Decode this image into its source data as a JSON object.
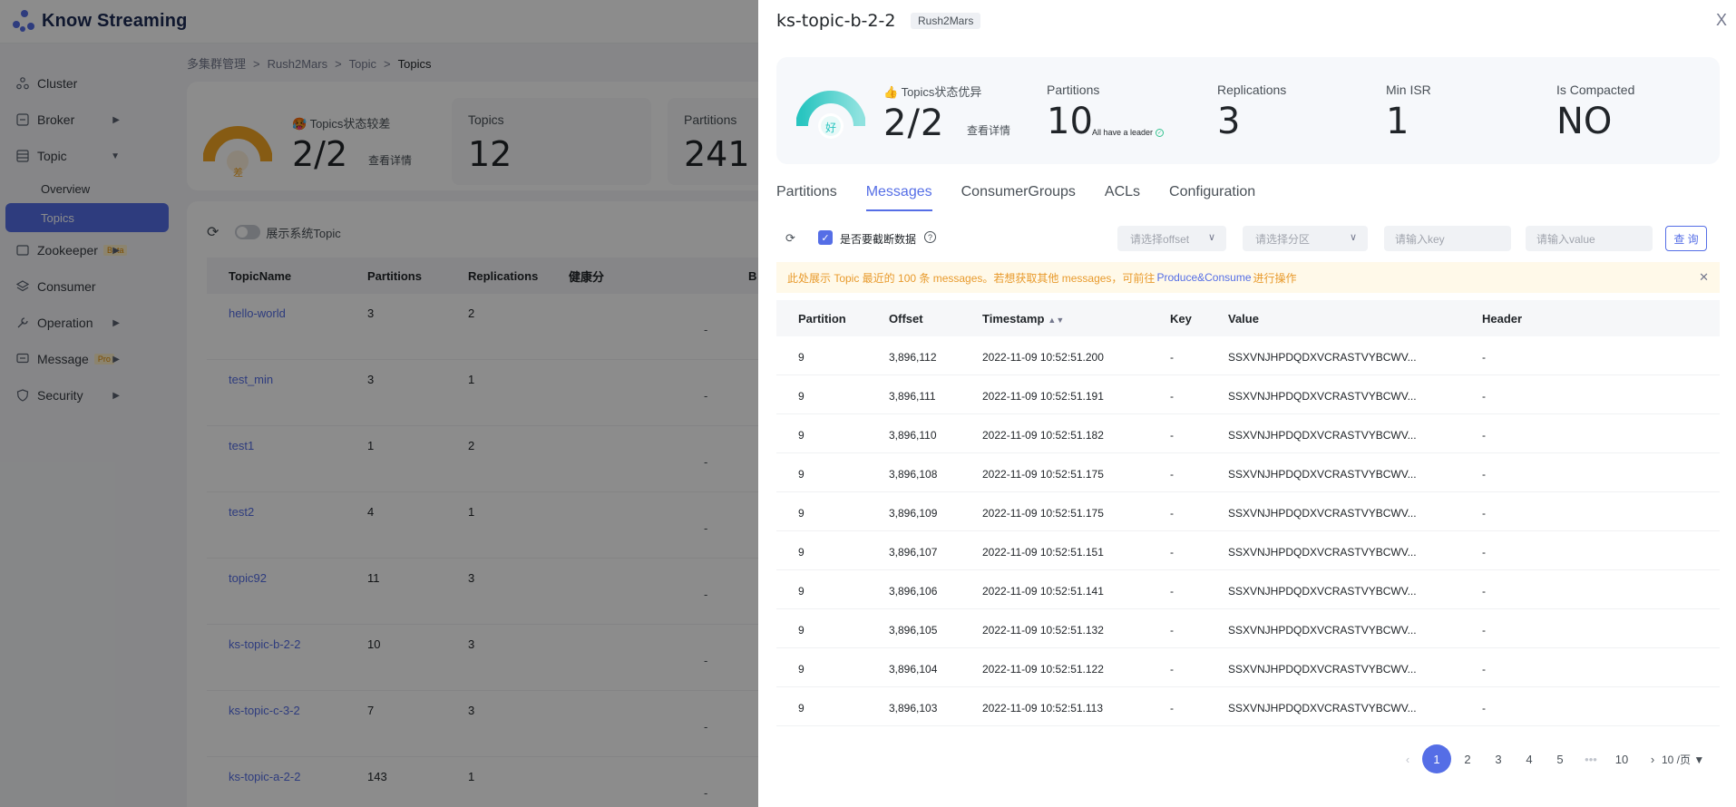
{
  "app": {
    "name": "Know Streaming"
  },
  "sidebar": {
    "items": [
      {
        "label": "Cluster"
      },
      {
        "label": "Broker"
      },
      {
        "label": "Topic"
      },
      {
        "label": "Overview"
      },
      {
        "label": "Topics"
      },
      {
        "label": "Zookeeper",
        "badge": "Beta"
      },
      {
        "label": "Consumer"
      },
      {
        "label": "Operation"
      },
      {
        "label": "Message",
        "badge": "Pro"
      },
      {
        "label": "Security"
      }
    ]
  },
  "breadcrumb": {
    "items": [
      "多集群管理",
      "Rush2Mars",
      "Topic",
      "Topics"
    ],
    "sep": ">"
  },
  "page_summary": {
    "health_title": "🥵 Topics状态较差",
    "health_grade": "差",
    "health_value": "2/2",
    "detail_link": "查看详情",
    "stats": [
      {
        "label": "Topics",
        "value": "12"
      },
      {
        "label": "Partitions",
        "value": "241"
      }
    ]
  },
  "topic_list": {
    "show_system_label": "展示系统Topic",
    "headers": [
      "TopicName",
      "Partitions",
      "Replications",
      "健康分",
      "B"
    ],
    "rows": [
      {
        "name": "hello-world",
        "partitions": "3",
        "replications": "2"
      },
      {
        "name": "test_min",
        "partitions": "3",
        "replications": "1"
      },
      {
        "name": "test1",
        "partitions": "1",
        "replications": "2"
      },
      {
        "name": "test2",
        "partitions": "4",
        "replications": "1"
      },
      {
        "name": "topic92",
        "partitions": "11",
        "replications": "3"
      },
      {
        "name": "ks-topic-b-2-2",
        "partitions": "10",
        "replications": "3"
      },
      {
        "name": "ks-topic-c-3-2",
        "partitions": "7",
        "replications": "3"
      },
      {
        "name": "ks-topic-a-2-2",
        "partitions": "143",
        "replications": "1"
      }
    ],
    "dash": "-"
  },
  "drawer": {
    "title": "ks-topic-b-2-2",
    "cluster_tag": "Rush2Mars",
    "close": "X",
    "summary": {
      "health_title": "👍 Topics状态优异",
      "health_grade": "好",
      "health_value": "2/2",
      "detail_link": "查看详情",
      "partitions_label": "Partitions",
      "partitions_value": "10",
      "leader_note": "All have a leader",
      "replications_label": "Replications",
      "replications_value": "3",
      "min_isr_label": "Min ISR",
      "min_isr_value": "1",
      "compacted_label": "Is Compacted",
      "compacted_value": "NO"
    },
    "tabs": [
      "Partitions",
      "Messages",
      "ConsumerGroups",
      "ACLs",
      "Configuration"
    ],
    "active_tab": "Messages",
    "filters": {
      "truncate_label": "是否要截断数据",
      "offset_placeholder": "请选择offset",
      "partition_placeholder": "请选择分区",
      "key_placeholder": "请输入key",
      "value_placeholder": "请输入value",
      "query_button": "查 询"
    },
    "notice": {
      "prefix": "此处展示 Topic 最近的 100 条 messages。若想获取其他 messages，可前往",
      "link": "Produce&Consume",
      "suffix": "进行操作"
    },
    "table": {
      "headers": [
        "Partition",
        "Offset",
        "Timestamp",
        "Key",
        "Value",
        "Header"
      ],
      "rows": [
        {
          "partition": "9",
          "offset": "3,896,112",
          "timestamp": "2022-11-09 10:52:51.200",
          "key": "-",
          "value": "SSXVNJHPDQDXVCRASTVYBCWV...",
          "header": "-"
        },
        {
          "partition": "9",
          "offset": "3,896,111",
          "timestamp": "2022-11-09 10:52:51.191",
          "key": "-",
          "value": "SSXVNJHPDQDXVCRASTVYBCWV...",
          "header": "-"
        },
        {
          "partition": "9",
          "offset": "3,896,110",
          "timestamp": "2022-11-09 10:52:51.182",
          "key": "-",
          "value": "SSXVNJHPDQDXVCRASTVYBCWV...",
          "header": "-"
        },
        {
          "partition": "9",
          "offset": "3,896,108",
          "timestamp": "2022-11-09 10:52:51.175",
          "key": "-",
          "value": "SSXVNJHPDQDXVCRASTVYBCWV...",
          "header": "-"
        },
        {
          "partition": "9",
          "offset": "3,896,109",
          "timestamp": "2022-11-09 10:52:51.175",
          "key": "-",
          "value": "SSXVNJHPDQDXVCRASTVYBCWV...",
          "header": "-"
        },
        {
          "partition": "9",
          "offset": "3,896,107",
          "timestamp": "2022-11-09 10:52:51.151",
          "key": "-",
          "value": "SSXVNJHPDQDXVCRASTVYBCWV...",
          "header": "-"
        },
        {
          "partition": "9",
          "offset": "3,896,106",
          "timestamp": "2022-11-09 10:52:51.141",
          "key": "-",
          "value": "SSXVNJHPDQDXVCRASTVYBCWV...",
          "header": "-"
        },
        {
          "partition": "9",
          "offset": "3,896,105",
          "timestamp": "2022-11-09 10:52:51.132",
          "key": "-",
          "value": "SSXVNJHPDQDXVCRASTVYBCWV...",
          "header": "-"
        },
        {
          "partition": "9",
          "offset": "3,896,104",
          "timestamp": "2022-11-09 10:52:51.122",
          "key": "-",
          "value": "SSXVNJHPDQDXVCRASTVYBCWV...",
          "header": "-"
        },
        {
          "partition": "9",
          "offset": "3,896,103",
          "timestamp": "2022-11-09 10:52:51.113",
          "key": "-",
          "value": "SSXVNJHPDQDXVCRASTVYBCWV...",
          "header": "-"
        }
      ]
    },
    "pagination": {
      "pages": [
        "1",
        "2",
        "3",
        "4",
        "5",
        "•••",
        "10"
      ],
      "current": "1",
      "page_size": "10 /页"
    }
  },
  "colors": {
    "primary": "#556ee6",
    "mask": "rgba(0,0,0,0.45)",
    "good": "#2dc7c2",
    "bad": "#f5a623",
    "notice_bg": "#fff9e9"
  }
}
